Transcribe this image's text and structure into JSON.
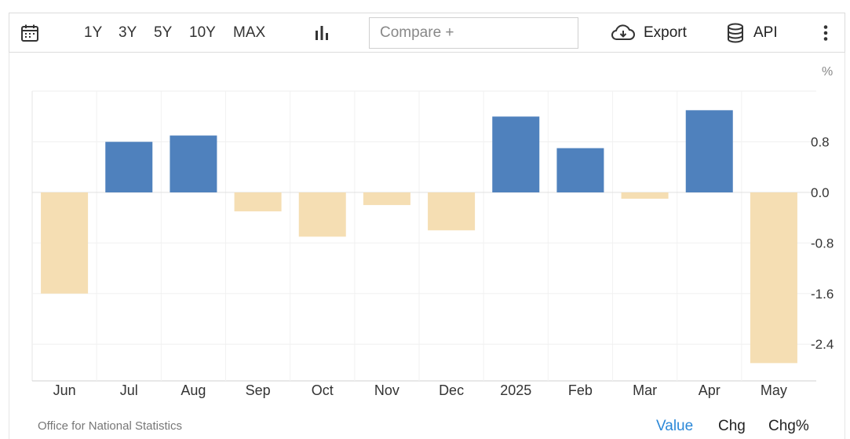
{
  "toolbar": {
    "calendar_icon": "calendar-icon",
    "ranges": [
      "1Y",
      "3Y",
      "5Y",
      "10Y",
      "MAX"
    ],
    "chart_type_icon": "bar-chart-icon",
    "compare_placeholder": "Compare +",
    "export_icon": "cloud-download-icon",
    "export_label": "Export",
    "api_icon": "database-icon",
    "api_label": "API",
    "more_icon": "vertical-ellipsis-icon"
  },
  "footer": {
    "source": "Office for National Statistics",
    "views": [
      "Value",
      "Chg",
      "Chg%"
    ],
    "active_view": "Value"
  },
  "colors": {
    "positive": "#4f81bd",
    "negative": "#f5deb3",
    "active_link": "#2b88d8"
  },
  "chart_data": {
    "type": "bar",
    "unit_label": "%",
    "categories": [
      "Jun",
      "Jul",
      "Aug",
      "Sep",
      "Oct",
      "Nov",
      "Dec",
      "2025",
      "Feb",
      "Mar",
      "Apr",
      "May"
    ],
    "values": [
      -1.6,
      0.8,
      0.9,
      -0.3,
      -0.7,
      -0.2,
      -0.6,
      1.2,
      0.7,
      -0.1,
      1.3,
      -2.7
    ],
    "yticks": [
      0.8,
      0.0,
      -0.8,
      -1.6,
      -2.4
    ],
    "ytick_labels": [
      "0.8",
      "0.0",
      "-0.8",
      "-1.6",
      "-2.4"
    ],
    "ylim": [
      -2.95,
      1.6
    ],
    "grid": true,
    "y_axis_side": "right",
    "title": "",
    "xlabel": "",
    "ylabel": ""
  }
}
